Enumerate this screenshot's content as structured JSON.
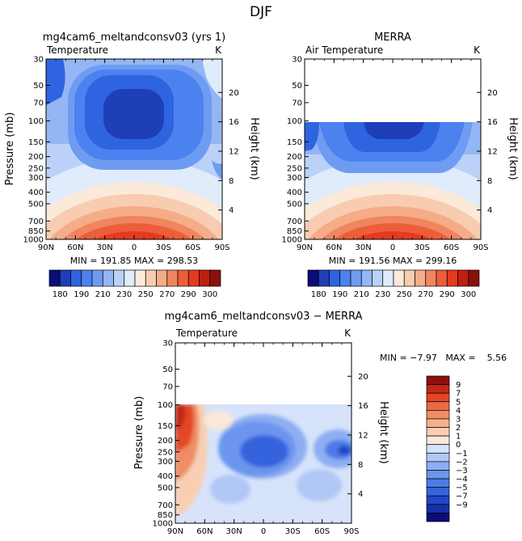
{
  "figure": {
    "title": "DJF"
  },
  "scales": {
    "pressure_ticks": [
      30,
      50,
      70,
      100,
      150,
      200,
      250,
      300,
      400,
      500,
      700,
      850,
      1000
    ],
    "height_ticks": [
      4,
      8,
      12,
      16,
      20
    ],
    "lat_ticks": [
      "90N",
      "60N",
      "30N",
      "0",
      "30S",
      "60S",
      "90S"
    ]
  },
  "colorbars": {
    "temperature": {
      "colors": [
        "#0b0b7a",
        "#1e3fb8",
        "#2f64e0",
        "#4c82ef",
        "#6e9cf2",
        "#94b6f4",
        "#bcd1f8",
        "#e0ebfb",
        "#fbe9da",
        "#f8ccb0",
        "#f5ac88",
        "#f08560",
        "#ec5e3a",
        "#e53a1e",
        "#bf1f0f",
        "#8c0f0f"
      ],
      "labels": [
        "180",
        "190",
        "210",
        "230",
        "250",
        "270",
        "290",
        "300"
      ]
    },
    "difference": {
      "colors": [
        "#0b0b7a",
        "#162fa6",
        "#2147c9",
        "#3564dd",
        "#4d7ce8",
        "#6c95ee",
        "#8daef2",
        "#b1c8f6",
        "#d6e3fa",
        "#fbe8d8",
        "#f8cfb3",
        "#f5b08c",
        "#f08d66",
        "#ea6a44",
        "#e34626",
        "#c42812",
        "#8e0f0f"
      ],
      "labels": [
        "9",
        "7",
        "5",
        "4",
        "3",
        "2",
        "1",
        "0",
        "−1",
        "−2",
        "−3",
        "−4",
        "−5",
        "−7",
        "−9"
      ]
    }
  },
  "chart_data": [
    {
      "type": "heatmap",
      "title": "mg4cam6_meltandconsv03 (yrs 1)",
      "left_label": "Temperature",
      "right_label": "K",
      "ylabel": "Pressure (mb)",
      "y2label": "Height (km)",
      "stats": "MIN = 191.85   MAX = 298.53",
      "min": 191.85,
      "max": 298.53,
      "ylim": [
        1000,
        30
      ],
      "xlim": [
        "90N",
        "90S"
      ]
    },
    {
      "type": "heatmap",
      "title": "MERRA",
      "left_label": "Air Temperature",
      "right_label": "K",
      "ylabel": "",
      "y2label": "Height (km)",
      "stats": "MIN = 191.56   MAX = 299.16",
      "min": 191.56,
      "max": 299.16,
      "ylim": [
        1000,
        100
      ],
      "xlim": [
        "90N",
        "90S"
      ]
    },
    {
      "type": "heatmap",
      "title": "mg4cam6_meltandconsv03 − MERRA",
      "left_label": "Temperature",
      "right_label": "K",
      "ylabel": "Pressure (mb)",
      "y2label": "Height (km)",
      "stats": "MIN = −7.97   MAX =    5.56",
      "min": -7.97,
      "max": 5.56,
      "ylim": [
        1000,
        100
      ],
      "xlim": [
        "90N",
        "90S"
      ]
    }
  ]
}
